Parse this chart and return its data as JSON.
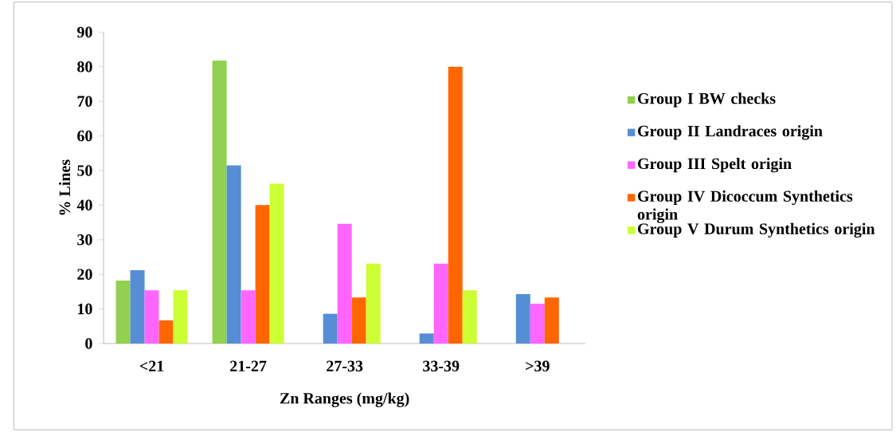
{
  "chart_data": {
    "type": "bar",
    "xlabel": "Zn Ranges (mg/kg)",
    "ylabel": "% Lines",
    "categories": [
      "<21",
      "21-27",
      "27-33",
      "33-39",
      ">39"
    ],
    "series": [
      {
        "name": "Group I BW checks",
        "color": "#92d050",
        "values": [
          18.2,
          81.8,
          0,
          0,
          0
        ]
      },
      {
        "name": "Group II Landraces origin",
        "color": "#558ed5",
        "values": [
          21.2,
          51.5,
          8.6,
          2.9,
          14.3
        ]
      },
      {
        "name": "Group III Spelt origin",
        "color": "#ff66ff",
        "values": [
          15.4,
          15.4,
          34.6,
          23.1,
          11.5
        ]
      },
      {
        "name": "Group IV Dicoccum Synthetics origin",
        "color": "#ff6600",
        "values": [
          6.7,
          40,
          13.3,
          80,
          13.3
        ]
      },
      {
        "name": "Group V Durum Synthetics origin",
        "color": "#ccff33",
        "values": [
          15.4,
          46.2,
          23.1,
          15.4,
          0
        ]
      }
    ],
    "ylim": [
      0,
      90
    ],
    "yticks": [
      0,
      10,
      20,
      30,
      40,
      50,
      60,
      70,
      80,
      90
    ],
    "legend": "right",
    "grid": false
  }
}
